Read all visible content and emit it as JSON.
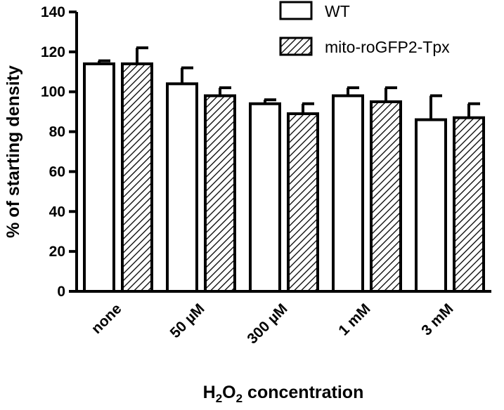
{
  "chart_data": {
    "type": "bar",
    "categories": [
      "none",
      "50 µM",
      "300 µM",
      "1 mM",
      "3 mM"
    ],
    "series": [
      {
        "name": "WT",
        "values": [
          114,
          104,
          94,
          98,
          86
        ],
        "errors": [
          1.5,
          8,
          2,
          4,
          12
        ],
        "pattern": "open"
      },
      {
        "name": "mito-roGFP2-Tpx",
        "values": [
          114,
          98,
          89,
          95,
          87
        ],
        "errors": [
          8,
          4,
          5,
          7,
          7
        ],
        "pattern": "hatched"
      }
    ],
    "xlabel": {
      "pre": "H",
      "sub1": "2",
      "mid": "O",
      "sub2": "2",
      "post": " concentration"
    },
    "ylabel": "% of starting density",
    "ylim": [
      0,
      140
    ],
    "yticks": [
      0,
      20,
      40,
      60,
      80,
      100,
      120,
      140
    ],
    "grid": false,
    "legend": "top-right",
    "colors": {
      "ink": "#000000",
      "fill": "#ffffff"
    }
  }
}
